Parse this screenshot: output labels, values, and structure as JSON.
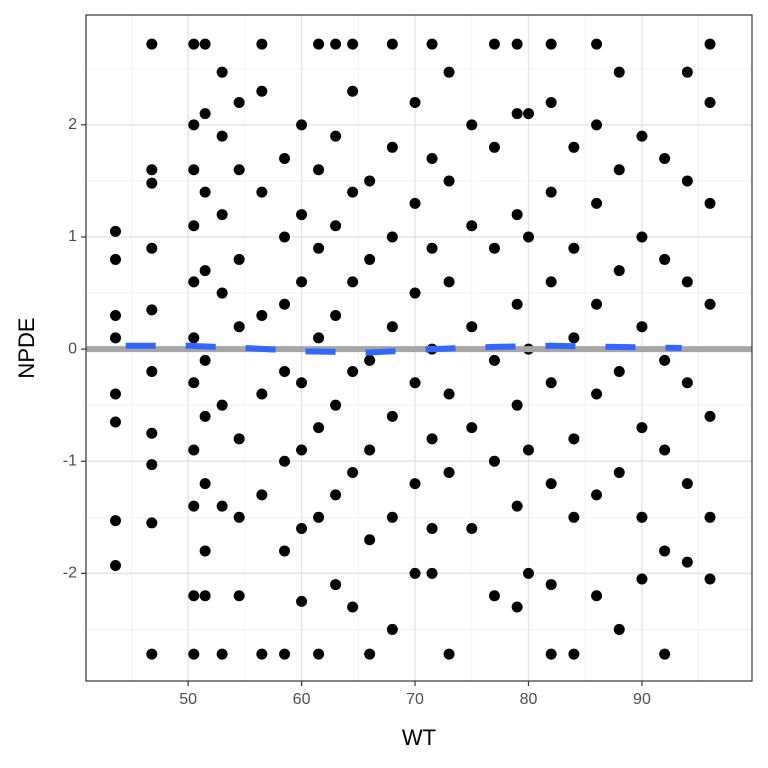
{
  "chart_data": {
    "type": "scatter",
    "x_label": "WT",
    "y_label": "NPDE",
    "xlim": [
      41.0,
      99.7
    ],
    "ylim": [
      -2.96,
      2.98
    ],
    "xticks": [
      50,
      60,
      70,
      80,
      90
    ],
    "yticks": [
      -2,
      -1,
      0,
      1,
      2
    ],
    "x_minor_grid": [
      45,
      55,
      65,
      75,
      85,
      95
    ],
    "y_minor_grid": [
      -2.5,
      -1.5,
      -0.5,
      0.5,
      1.5,
      2.5
    ],
    "grid": true,
    "point_color": "#000000",
    "reference_line": {
      "y": 0,
      "color": "#a6a6a6"
    },
    "smooth": {
      "color": "#3366ff",
      "x": [
        44.5,
        50,
        55,
        60.5,
        66,
        71.5,
        77,
        82,
        87.5,
        93.5
      ],
      "y": [
        0.03,
        0.03,
        0.01,
        -0.02,
        -0.03,
        0.0,
        0.02,
        0.03,
        0.02,
        0.01
      ]
    },
    "columns": [
      {
        "x": 43.6,
        "y": [
          1.05,
          0.8,
          0.3,
          0.1,
          -0.4,
          -0.65,
          -1.53,
          -1.93
        ]
      },
      {
        "x": 46.8,
        "y": [
          2.72,
          1.6,
          1.48,
          0.9,
          0.35,
          -0.2,
          -0.75,
          -1.03,
          -1.55,
          -2.72
        ]
      },
      {
        "x": 50.5,
        "y": [
          2.72,
          2.0,
          1.6,
          1.1,
          0.6,
          0.1,
          -0.3,
          -0.9,
          -1.4,
          -2.2,
          -2.72
        ]
      },
      {
        "x": 51.5,
        "y": [
          2.72,
          2.1,
          1.4,
          0.7,
          -0.1,
          -0.6,
          -1.2,
          -1.8,
          -2.2
        ]
      },
      {
        "x": 53,
        "y": [
          2.47,
          1.9,
          1.2,
          0.5,
          -0.5,
          -1.4,
          -2.72
        ]
      },
      {
        "x": 54.5,
        "y": [
          2.2,
          1.6,
          0.8,
          0.2,
          -0.8,
          -1.5,
          -2.2
        ]
      },
      {
        "x": 56.5,
        "y": [
          2.72,
          2.3,
          1.4,
          0.3,
          -0.4,
          -1.3,
          -2.72
        ]
      },
      {
        "x": 58.5,
        "y": [
          1.7,
          1.0,
          0.4,
          -0.2,
          -1.0,
          -1.8,
          -2.72
        ]
      },
      {
        "x": 60,
        "y": [
          2.0,
          1.2,
          0.6,
          -0.3,
          -0.9,
          -1.6,
          -2.25
        ]
      },
      {
        "x": 61.5,
        "y": [
          2.72,
          1.6,
          0.9,
          0.1,
          -0.7,
          -1.5,
          -2.72
        ]
      },
      {
        "x": 63,
        "y": [
          2.72,
          1.9,
          1.1,
          0.3,
          -0.5,
          -1.3,
          -2.1
        ]
      },
      {
        "x": 64.5,
        "y": [
          2.72,
          2.3,
          1.4,
          0.6,
          -0.2,
          -1.1,
          -2.3
        ]
      },
      {
        "x": 66,
        "y": [
          1.5,
          0.8,
          -0.1,
          -0.9,
          -1.7,
          -2.72
        ]
      },
      {
        "x": 68,
        "y": [
          2.72,
          1.8,
          1.0,
          0.2,
          -0.6,
          -1.5,
          -2.5
        ]
      },
      {
        "x": 70,
        "y": [
          2.2,
          1.3,
          0.5,
          -0.3,
          -1.2,
          -2.0
        ]
      },
      {
        "x": 71.5,
        "y": [
          2.72,
          1.7,
          0.9,
          0.0,
          -0.8,
          -1.6,
          -2.0
        ]
      },
      {
        "x": 73,
        "y": [
          2.47,
          1.5,
          0.6,
          -0.4,
          -1.1,
          -2.72
        ]
      },
      {
        "x": 75,
        "y": [
          2.0,
          1.1,
          0.2,
          -0.7,
          -1.6
        ]
      },
      {
        "x": 77,
        "y": [
          2.72,
          1.8,
          0.9,
          -0.1,
          -1.0,
          -2.2
        ]
      },
      {
        "x": 79,
        "y": [
          2.72,
          2.1,
          1.2,
          0.4,
          -0.5,
          -1.4,
          -2.3
        ]
      },
      {
        "x": 80,
        "y": [
          2.1,
          1.0,
          0.0,
          -0.9,
          -2.0
        ]
      },
      {
        "x": 82,
        "y": [
          2.72,
          2.2,
          1.4,
          0.6,
          -0.3,
          -1.2,
          -2.1,
          -2.72
        ]
      },
      {
        "x": 84,
        "y": [
          1.8,
          0.9,
          0.1,
          -0.8,
          -1.5,
          -2.72
        ]
      },
      {
        "x": 86,
        "y": [
          2.72,
          2.0,
          1.3,
          0.4,
          -0.4,
          -1.3,
          -2.2
        ]
      },
      {
        "x": 88,
        "y": [
          2.47,
          1.6,
          0.7,
          -0.2,
          -1.1,
          -2.5
        ]
      },
      {
        "x": 90,
        "y": [
          1.9,
          1.0,
          0.2,
          -0.7,
          -1.5,
          -2.05
        ]
      },
      {
        "x": 92,
        "y": [
          1.7,
          0.8,
          -0.1,
          -0.9,
          -1.8,
          -2.72
        ]
      },
      {
        "x": 94,
        "y": [
          2.47,
          1.5,
          0.6,
          -0.3,
          -1.2,
          -1.9
        ]
      },
      {
        "x": 96,
        "y": [
          2.72,
          2.2,
          1.3,
          0.4,
          -0.6,
          -1.5,
          -2.05
        ]
      }
    ]
  }
}
